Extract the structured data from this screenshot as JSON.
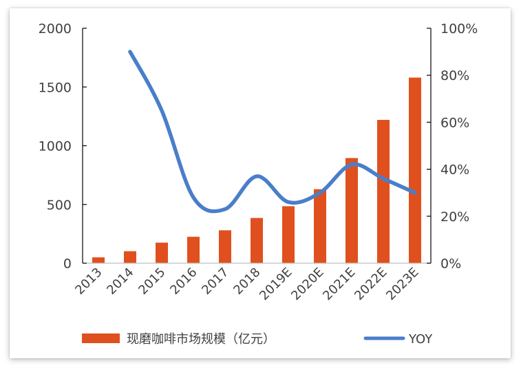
{
  "chart_data": {
    "type": "bar+line",
    "categories": [
      "2013",
      "2014",
      "2015",
      "2016",
      "2017",
      "2018",
      "2019E",
      "2020E",
      "2021E",
      "2022E",
      "2023E"
    ],
    "series": [
      {
        "name": "现磨咖啡市场规模（亿元）",
        "type": "bar",
        "axis": "left",
        "color": "#E0501E",
        "values": [
          50,
          102,
          175,
          225,
          280,
          385,
          485,
          630,
          895,
          1220,
          1580
        ]
      },
      {
        "name": "YOY",
        "type": "line",
        "axis": "right",
        "color": "#4A7EC9",
        "values": [
          null,
          0.9,
          0.65,
          0.28,
          0.23,
          0.37,
          0.26,
          0.3,
          0.42,
          0.36,
          0.3
        ]
      }
    ],
    "y_left": {
      "min": 0,
      "max": 2000,
      "ticks": [
        0,
        500,
        1000,
        1500,
        2000
      ],
      "tick_labels": [
        "0",
        "500",
        "1000",
        "1500",
        "2000"
      ]
    },
    "y_right": {
      "min": 0,
      "max": 1,
      "ticks": [
        0,
        0.2,
        0.4,
        0.6,
        0.8,
        1.0
      ],
      "tick_labels": [
        "0%",
        "20%",
        "40%",
        "60%",
        "80%",
        "100%"
      ]
    },
    "legend_position": "bottom",
    "grid": false
  }
}
